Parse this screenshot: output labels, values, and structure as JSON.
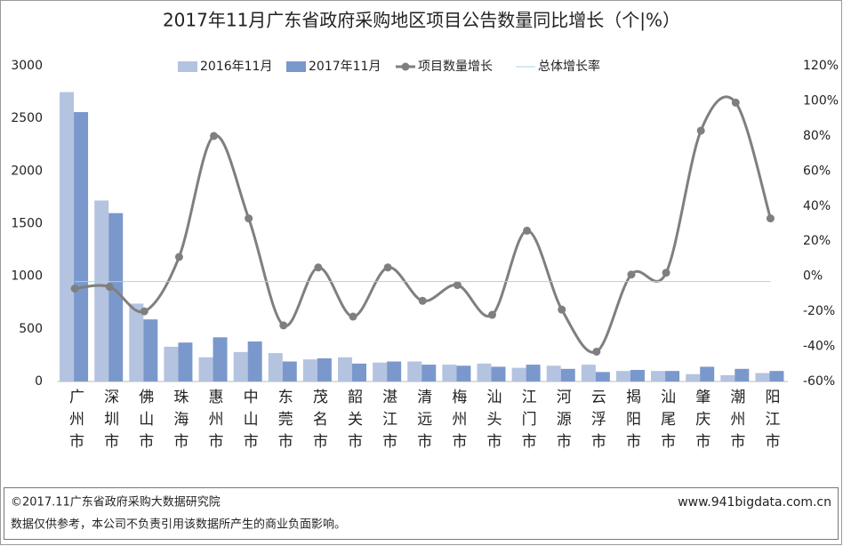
{
  "chart_data": {
    "type": "bar_line",
    "title": "2017年11月广东省政府采购地区项目公告数量同比增长（个|%）",
    "categories": [
      "广州市",
      "深圳市",
      "佛山市",
      "珠海市",
      "惠州市",
      "中山市",
      "东莞市",
      "茂名市",
      "韶关市",
      "湛江市",
      "清远市",
      "梅州市",
      "汕头市",
      "江门市",
      "河源市",
      "云浮市",
      "揭阳市",
      "汕尾市",
      "肇庆市",
      "潮州市",
      "阳江市"
    ],
    "series": [
      {
        "name": "2016年11月",
        "type": "bar",
        "color": "#b4c3e0",
        "values": [
          2750,
          1720,
          740,
          330,
          230,
          280,
          270,
          210,
          230,
          180,
          190,
          160,
          170,
          130,
          150,
          160,
          100,
          100,
          70,
          60,
          80
        ]
      },
      {
        "name": "2017年11月",
        "type": "bar",
        "color": "#7a98cb",
        "values": [
          2560,
          1600,
          590,
          370,
          420,
          380,
          190,
          220,
          170,
          190,
          160,
          150,
          140,
          160,
          120,
          90,
          110,
          100,
          140,
          120,
          100
        ]
      },
      {
        "name": "项目数量增长",
        "type": "line",
        "axis": "y2",
        "color": "#7f7f7f",
        "values": [
          -7,
          -6,
          -20,
          11,
          80,
          33,
          -28,
          5,
          -23,
          5,
          -14,
          -5,
          -22,
          26,
          -19,
          -43,
          1,
          2,
          83,
          99,
          33
        ]
      },
      {
        "name": "总体增长率",
        "type": "line",
        "axis": "y2",
        "color": "#a9d4e4",
        "values": [
          -3,
          -3,
          -3,
          -3,
          -3,
          -3,
          -3,
          -3,
          -3,
          -3,
          -3,
          -3,
          -3,
          -3,
          -3,
          -3,
          -3,
          -3,
          -3,
          -3,
          -3
        ]
      }
    ],
    "ylim": [
      0,
      3000
    ],
    "yticks": [
      0,
      500,
      1000,
      1500,
      2000,
      2500,
      3000
    ],
    "y2lim": [
      -60,
      120
    ],
    "y2ticks": [
      {
        "value": -60,
        "label": "-60%"
      },
      {
        "value": -40,
        "label": "-40%"
      },
      {
        "value": -20,
        "label": "-20%"
      },
      {
        "value": 0,
        "label": "0%"
      },
      {
        "value": 20,
        "label": "20%"
      },
      {
        "value": 40,
        "label": "40%"
      },
      {
        "value": 60,
        "label": "60%"
      },
      {
        "value": 80,
        "label": "80%"
      },
      {
        "value": 100,
        "label": "100%"
      },
      {
        "value": 120,
        "label": "120%"
      }
    ],
    "legend": "top"
  },
  "footer": {
    "copyright": "©2017.11广东省政府采购大数据研究院",
    "disclaimer": "数据仅供参考，本公司不负责引用该数据所产生的商业负面影响。",
    "website": "www.941bigdata.com.cn"
  }
}
